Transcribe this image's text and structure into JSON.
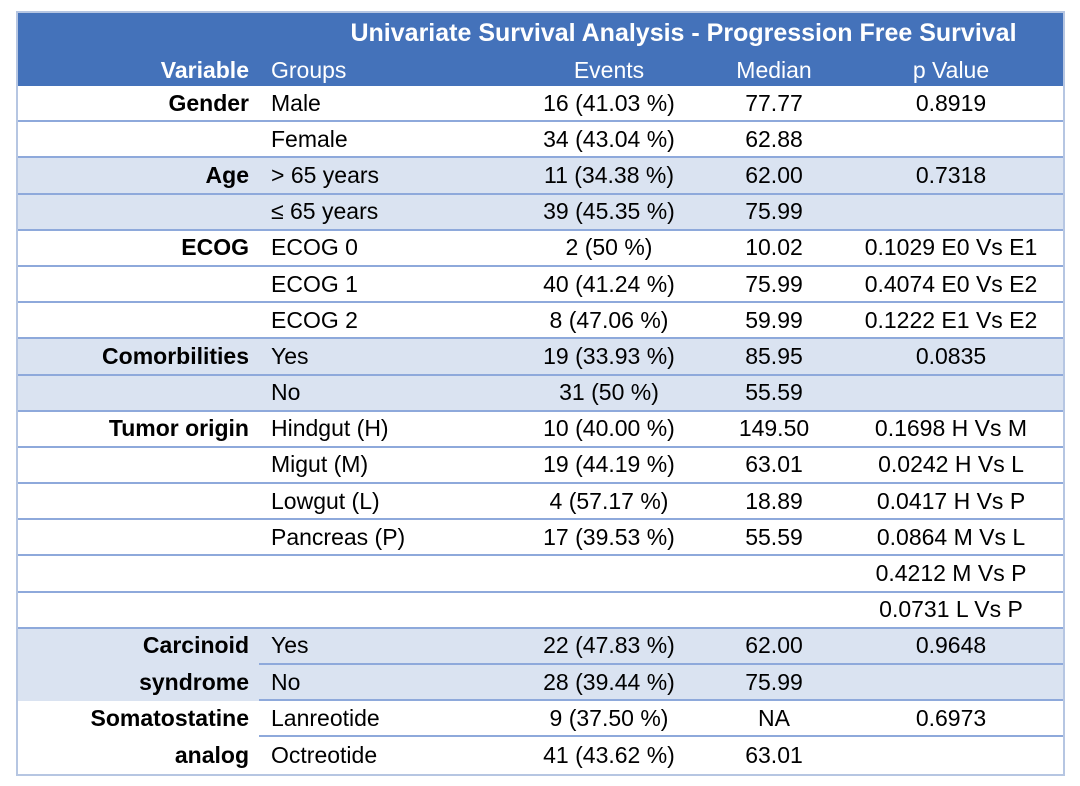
{
  "chart_data": {
    "type": "table",
    "title": "Univariate Survival Analysis - Progression Free Survival",
    "columns": [
      "Variable",
      "Groups",
      "Events",
      "Median",
      "p Value"
    ],
    "rows": [
      {
        "variable": "Gender",
        "group": "Male",
        "events": "16 (41.03 %)",
        "median": "77.77",
        "p_value": "0.8919"
      },
      {
        "variable": "",
        "group": "Female",
        "events": "34 (43.04 %)",
        "median": "62.88",
        "p_value": ""
      },
      {
        "variable": "Age",
        "group": "> 65 years",
        "events": "11 (34.38 %)",
        "median": "62.00",
        "p_value": "0.7318"
      },
      {
        "variable": "",
        "group": "≤ 65 years",
        "events": "39 (45.35 %)",
        "median": "75.99",
        "p_value": ""
      },
      {
        "variable": "ECOG",
        "group": "ECOG 0",
        "events": "2 (50 %)",
        "median": "10.02",
        "p_value": "0.1029 E0 Vs E1"
      },
      {
        "variable": "",
        "group": "ECOG 1",
        "events": "40 (41.24 %)",
        "median": "75.99",
        "p_value": "0.4074 E0 Vs E2"
      },
      {
        "variable": "",
        "group": "ECOG 2",
        "events": "8 (47.06 %)",
        "median": "59.99",
        "p_value": "0.1222 E1 Vs E2"
      },
      {
        "variable": "Comorbilities",
        "group": "Yes",
        "events": "19 (33.93 %)",
        "median": "85.95",
        "p_value": "0.0835"
      },
      {
        "variable": "",
        "group": "No",
        "events": "31 (50 %)",
        "median": "55.59",
        "p_value": ""
      },
      {
        "variable": "Tumor origin",
        "group": "Hindgut (H)",
        "events": "10 (40.00 %)",
        "median": "149.50",
        "p_value": "0.1698 H Vs M"
      },
      {
        "variable": "",
        "group": "Migut (M)",
        "events": "19 (44.19 %)",
        "median": "63.01",
        "p_value": "0.0242 H Vs L"
      },
      {
        "variable": "",
        "group": "Lowgut (L)",
        "events": "4 (57.17 %)",
        "median": "18.89",
        "p_value": "0.0417 H Vs P"
      },
      {
        "variable": "",
        "group": "Pancreas (P)",
        "events": "17 (39.53 %)",
        "median": "55.59",
        "p_value": "0.0864 M Vs L"
      },
      {
        "variable": "",
        "group": "",
        "events": "",
        "median": "",
        "p_value": "0.4212 M Vs P"
      },
      {
        "variable": "",
        "group": "",
        "events": "",
        "median": "",
        "p_value": "0.0731 L Vs P"
      },
      {
        "variable": "Carcinoid",
        "group": "Yes",
        "events": "22 (47.83 %)",
        "median": "62.00",
        "p_value": "0.9648"
      },
      {
        "variable": "syndrome",
        "group": "No",
        "events": "28 (39.44 %)",
        "median": "75.99",
        "p_value": ""
      },
      {
        "variable": "Somatostatine",
        "group": "Lanreotide",
        "events": "9 (37.50 %)",
        "median": "NA",
        "p_value": "0.6973"
      },
      {
        "variable": "analog",
        "group": "Octreotide",
        "events": "41 (43.62 %)",
        "median": "63.01",
        "p_value": ""
      }
    ],
    "layout": {
      "legend": "none",
      "banded_sections": [
        "Age",
        "Comorbilities",
        "Carcinoid syndrome"
      ],
      "grid": "horizontal-row-borders-only"
    }
  },
  "colors": {
    "header_bg": "#4472ba",
    "header_text": "#ffffff",
    "band_bg": "#dae3f1",
    "row_border": "#8ea9db",
    "outer_border": "#b6c6e2",
    "body_text": "#000000"
  }
}
